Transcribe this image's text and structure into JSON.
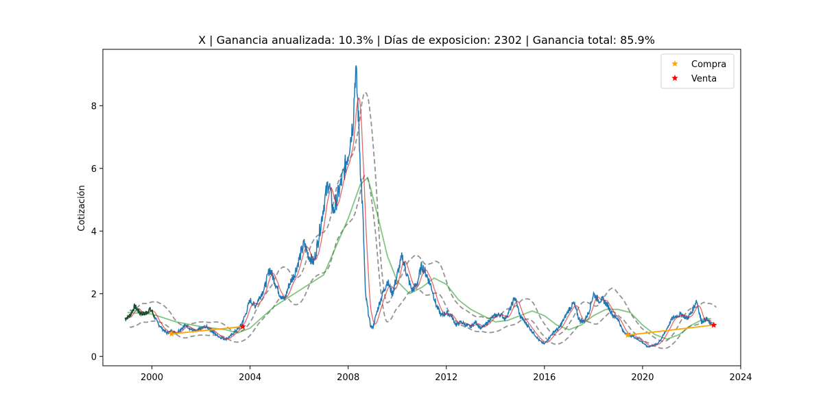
{
  "chart_data": {
    "type": "line",
    "title": "X | Ganancia anualizada:  10.3% | Días de exposicion:   2302 | Ganancia total:  85.9%",
    "xlabel": "",
    "ylabel": "Cotización",
    "xlim": [
      1998.0,
      2024.0
    ],
    "ylim": [
      -0.3,
      9.8
    ],
    "xticks": [
      2000,
      2004,
      2008,
      2012,
      2016,
      2020,
      2024
    ],
    "yticks": [
      0,
      2,
      4,
      6,
      8
    ],
    "grid": false,
    "legend_position": "upper-right",
    "legend": [
      {
        "label": "Compra",
        "color": "#ffa500",
        "marker": "star"
      },
      {
        "label": "Venta",
        "color": "#ff0000",
        "marker": "star"
      }
    ],
    "colors": {
      "price": "#1f77b4",
      "ma_short": "#d62728",
      "bands": "#7f7f7f",
      "ma_long": "#2ca02c",
      "trade": "#ffa500",
      "buy": "#ffa500",
      "sell": "#ff0000"
    },
    "price": {
      "x": [
        1998.9,
        1999.1,
        1999.3,
        1999.5,
        1999.7,
        1999.9,
        2000.0,
        2000.2,
        2000.4,
        2000.6,
        2000.8,
        2001.0,
        2001.2,
        2001.4,
        2001.6,
        2001.8,
        2002.0,
        2002.2,
        2002.4,
        2002.6,
        2002.8,
        2003.0,
        2003.2,
        2003.4,
        2003.6,
        2003.8,
        2004.0,
        2004.2,
        2004.4,
        2004.6,
        2004.8,
        2005.0,
        2005.2,
        2005.4,
        2005.6,
        2005.8,
        2006.0,
        2006.2,
        2006.4,
        2006.6,
        2006.8,
        2007.0,
        2007.2,
        2007.4,
        2007.6,
        2007.8,
        2008.0,
        2008.2,
        2008.3,
        2008.4,
        2008.5,
        2008.6,
        2008.7,
        2008.8,
        2008.9,
        2009.0,
        2009.2,
        2009.4,
        2009.6,
        2009.8,
        2010.0,
        2010.2,
        2010.4,
        2010.6,
        2010.8,
        2011.0,
        2011.2,
        2011.4,
        2011.6,
        2011.8,
        2012.0,
        2012.2,
        2012.4,
        2012.6,
        2012.8,
        2013.0,
        2013.2,
        2013.4,
        2013.6,
        2013.8,
        2014.0,
        2014.2,
        2014.4,
        2014.6,
        2014.8,
        2015.0,
        2015.2,
        2015.4,
        2015.6,
        2015.8,
        2016.0,
        2016.2,
        2016.4,
        2016.6,
        2016.8,
        2017.0,
        2017.2,
        2017.4,
        2017.6,
        2017.8,
        2018.0,
        2018.2,
        2018.4,
        2018.6,
        2018.8,
        2019.0,
        2019.2,
        2019.4,
        2019.6,
        2019.8,
        2020.0,
        2020.2,
        2020.4,
        2020.6,
        2020.8,
        2021.0,
        2021.2,
        2021.4,
        2021.6,
        2021.8,
        2022.0,
        2022.2,
        2022.4,
        2022.6,
        2022.8
      ],
      "y": [
        1.2,
        1.3,
        1.6,
        1.4,
        1.35,
        1.5,
        1.45,
        1.1,
        0.9,
        0.75,
        0.8,
        0.75,
        0.9,
        1.0,
        0.85,
        0.8,
        0.9,
        0.95,
        0.85,
        0.7,
        0.6,
        0.55,
        0.65,
        0.8,
        0.95,
        1.3,
        1.8,
        1.6,
        1.9,
        2.2,
        2.8,
        2.4,
        2.0,
        1.8,
        2.3,
        2.6,
        3.1,
        3.6,
        3.2,
        3.0,
        3.8,
        4.8,
        5.6,
        4.6,
        5.2,
        5.8,
        6.5,
        7.5,
        9.2,
        8.0,
        6.0,
        4.5,
        2.0,
        1.5,
        1.0,
        0.9,
        1.5,
        2.0,
        2.4,
        2.0,
        2.6,
        3.2,
        2.6,
        2.1,
        2.3,
        2.9,
        2.6,
        2.2,
        1.6,
        1.3,
        1.4,
        1.3,
        1.0,
        1.1,
        1.0,
        0.95,
        1.1,
        0.9,
        1.0,
        1.2,
        1.3,
        1.35,
        1.2,
        1.5,
        1.9,
        1.3,
        1.1,
        0.9,
        0.7,
        0.5,
        0.4,
        0.6,
        0.8,
        0.9,
        1.2,
        1.5,
        1.7,
        1.2,
        1.1,
        1.4,
        2.0,
        1.8,
        1.8,
        1.6,
        1.3,
        1.2,
        0.8,
        0.7,
        0.65,
        0.55,
        0.45,
        0.3,
        0.35,
        0.4,
        0.6,
        0.9,
        1.2,
        1.3,
        1.35,
        1.2,
        1.4,
        1.8,
        1.1,
        1.2,
        1.0
      ]
    },
    "ma_long": {
      "x": [
        1999.0,
        2000.0,
        2001.0,
        2002.0,
        2003.0,
        2003.5,
        2004.0,
        2005.0,
        2006.0,
        2007.0,
        2007.5,
        2008.0,
        2008.5,
        2008.8,
        2009.2,
        2009.6,
        2010.0,
        2010.5,
        2011.0,
        2011.5,
        2012.0,
        2012.5,
        2013.0,
        2014.0,
        2014.5,
        2015.0,
        2015.5,
        2016.0,
        2016.5,
        2017.0,
        2017.5,
        2018.0,
        2018.5,
        2019.0,
        2019.5,
        2020.0,
        2020.5,
        2021.0,
        2021.5,
        2022.0,
        2022.5,
        2022.8
      ],
      "y": [
        1.4,
        1.35,
        1.1,
        0.95,
        0.85,
        0.75,
        0.9,
        1.6,
        2.1,
        2.6,
        3.5,
        4.4,
        5.5,
        5.7,
        4.5,
        3.2,
        2.4,
        2.0,
        2.2,
        2.5,
        2.3,
        1.8,
        1.5,
        1.1,
        1.15,
        1.3,
        1.45,
        1.3,
        1.0,
        0.85,
        1.0,
        1.3,
        1.5,
        1.5,
        1.4,
        1.0,
        0.7,
        0.55,
        0.7,
        1.0,
        1.2,
        1.2
      ]
    },
    "buys": [
      {
        "x": 2000.8,
        "y": 0.72
      },
      {
        "x": 2019.4,
        "y": 0.68
      }
    ],
    "sells": [
      {
        "x": 2003.7,
        "y": 0.95
      },
      {
        "x": 2022.9,
        "y": 1.0
      }
    ],
    "trades": [
      {
        "x": [
          2000.8,
          2003.7
        ],
        "y": [
          0.72,
          0.95
        ]
      },
      {
        "x": [
          2019.4,
          2022.9
        ],
        "y": [
          0.68,
          1.0
        ]
      }
    ]
  }
}
